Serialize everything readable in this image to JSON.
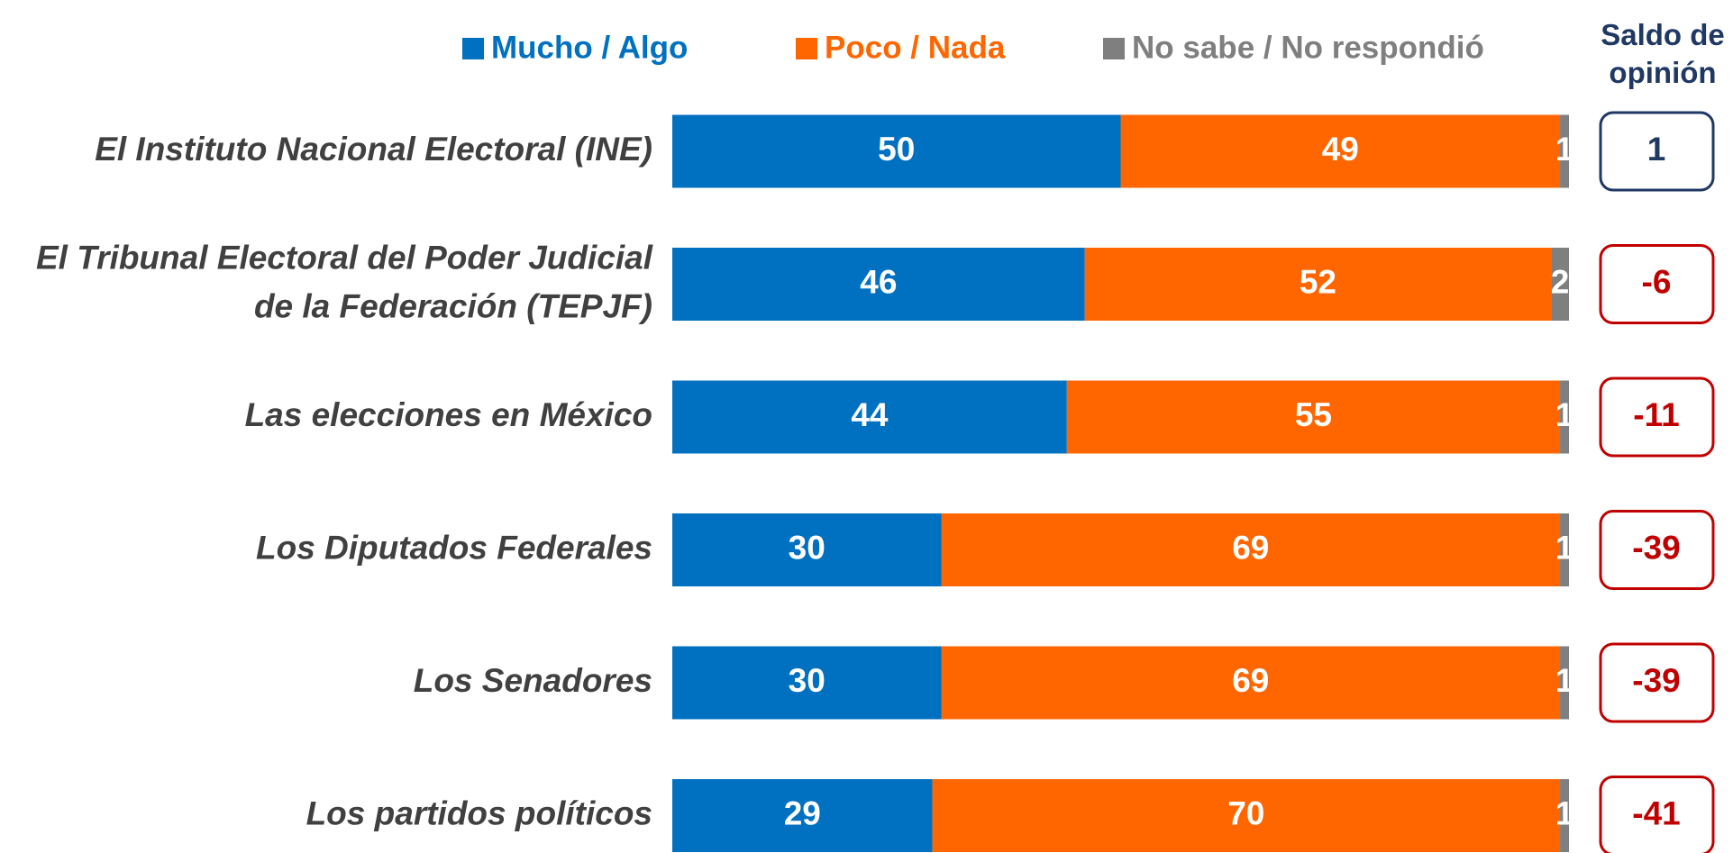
{
  "chart_data": {
    "type": "stacked_bar_horizontal",
    "categories": [
      "El Instituto Nacional Electoral (INE)",
      "El Tribunal Electoral del Poder Judicial\nde la Federación (TEPJF)",
      "Las elecciones en México",
      "Los Diputados Federales",
      "Los Senadores",
      "Los partidos políticos"
    ],
    "series": [
      {
        "name": "Mucho / Algo",
        "color": "#0070c0",
        "values": [
          50,
          46,
          44,
          30,
          30,
          29
        ]
      },
      {
        "name": "Poco / Nada",
        "color": "#ff6600",
        "values": [
          49,
          52,
          55,
          69,
          69,
          70
        ]
      },
      {
        "name": "No sabe / No respondió",
        "color": "#7f7f7f",
        "values": [
          1,
          2,
          1,
          1,
          1,
          1
        ]
      }
    ],
    "xlim": [
      0,
      100
    ],
    "balance": {
      "title": "Saldo de\nopinión",
      "values": [
        1,
        -6,
        -11,
        -39,
        -39,
        -41
      ],
      "positive_color": "#1f3864",
      "negative_color": "#c00000"
    }
  }
}
